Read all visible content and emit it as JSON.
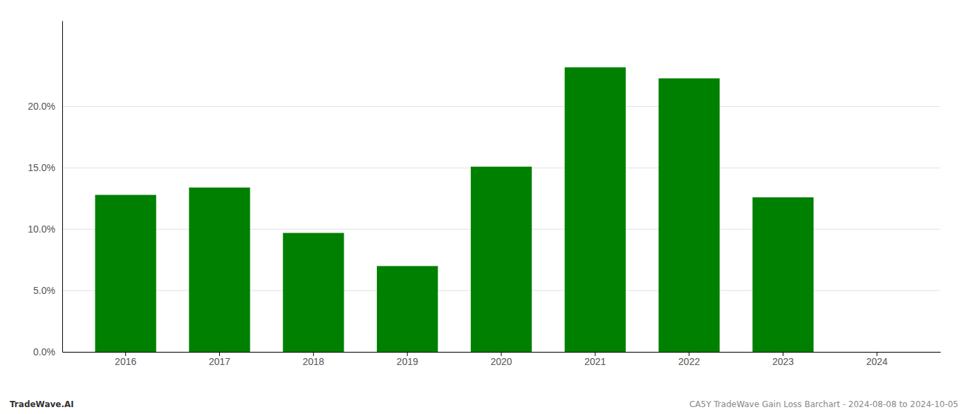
{
  "chart_data": {
    "type": "bar",
    "categories": [
      "2016",
      "2017",
      "2018",
      "2019",
      "2020",
      "2021",
      "2022",
      "2023",
      "2024"
    ],
    "values": [
      0.128,
      0.134,
      0.097,
      0.07,
      0.151,
      0.232,
      0.223,
      0.126,
      0.0
    ],
    "color": "#008000",
    "ylim": [
      0,
      0.27
    ],
    "yticks": [
      {
        "value": 0.0,
        "label": "0.0%"
      },
      {
        "value": 0.05,
        "label": "5.0%"
      },
      {
        "value": 0.1,
        "label": "10.0%"
      },
      {
        "value": 0.15,
        "label": "15.0%"
      },
      {
        "value": 0.2,
        "label": "20.0%"
      }
    ],
    "grid": true,
    "annotations": [
      "TradeWave.AI",
      "CA5Y TradeWave Gain Loss Barchart - 2024-08-08 to 2024-10-05"
    ]
  }
}
